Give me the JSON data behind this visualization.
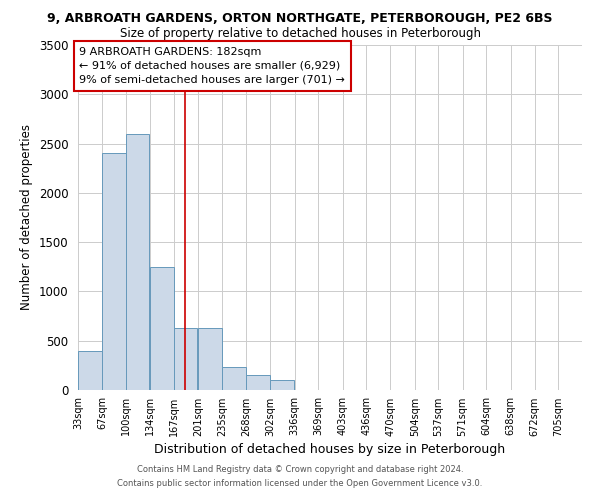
{
  "title1": "9, ARBROATH GARDENS, ORTON NORTHGATE, PETERBOROUGH, PE2 6BS",
  "title2": "Size of property relative to detached houses in Peterborough",
  "xlabel": "Distribution of detached houses by size in Peterborough",
  "ylabel": "Number of detached properties",
  "footer1": "Contains HM Land Registry data © Crown copyright and database right 2024.",
  "footer2": "Contains public sector information licensed under the Open Government Licence v3.0.",
  "annotation_line1": "9 ARBROATH GARDENS: 182sqm",
  "annotation_line2": "← 91% of detached houses are smaller (6,929)",
  "annotation_line3": "9% of semi-detached houses are larger (701) →",
  "bar_edges": [
    33,
    67,
    100,
    134,
    167,
    201,
    235,
    268,
    302,
    336,
    369,
    403,
    436,
    470,
    504,
    537,
    571,
    604,
    638,
    672,
    705
  ],
  "bar_heights": [
    400,
    2400,
    2600,
    1250,
    630,
    630,
    230,
    150,
    100,
    0,
    0,
    0,
    0,
    0,
    0,
    0,
    0,
    0,
    0,
    0
  ],
  "bar_color": "#ccd9e8",
  "bar_edge_color": "#6699bb",
  "vline_x": 182,
  "vline_color": "#cc0000",
  "ylim": [
    0,
    3500
  ],
  "yticks": [
    0,
    500,
    1000,
    1500,
    2000,
    2500,
    3000,
    3500
  ],
  "background_color": "#ffffff",
  "grid_color": "#cccccc",
  "annotation_box_color": "#ffffff",
  "annotation_box_edge": "#cc0000"
}
